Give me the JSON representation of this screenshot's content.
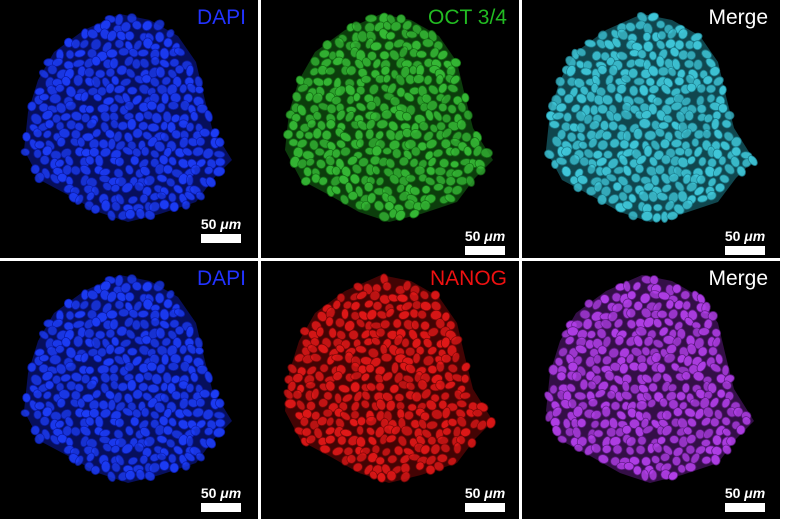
{
  "panels": [
    {
      "label": "DAPI",
      "label_color": "#2233ff",
      "cell_color": "#1c3cf5",
      "edge_color": "#0c1ca8",
      "scale_value": "50",
      "scale_unit": "μm"
    },
    {
      "label": "OCT 3/4",
      "label_color": "#22bb22",
      "cell_color": "#35b835",
      "edge_color": "#167016",
      "scale_value": "50",
      "scale_unit": "μm"
    },
    {
      "label": "Merge",
      "label_color": "#ffffff",
      "cell_color": "#3fc6d8",
      "edge_color": "#1e7f8e",
      "scale_value": "50",
      "scale_unit": "μm"
    },
    {
      "label": "DAPI",
      "label_color": "#2233ff",
      "cell_color": "#1c3cf5",
      "edge_color": "#0c1ca8",
      "scale_value": "50",
      "scale_unit": "μm"
    },
    {
      "label": "NANOG",
      "label_color": "#ee1111",
      "cell_color": "#e01818",
      "edge_color": "#7a0808",
      "scale_value": "50",
      "scale_unit": "μm"
    },
    {
      "label": "Merge",
      "label_color": "#ffffff",
      "cell_color": "#b03ee6",
      "edge_color": "#5e1b82",
      "scale_value": "50",
      "scale_unit": "μm"
    }
  ]
}
